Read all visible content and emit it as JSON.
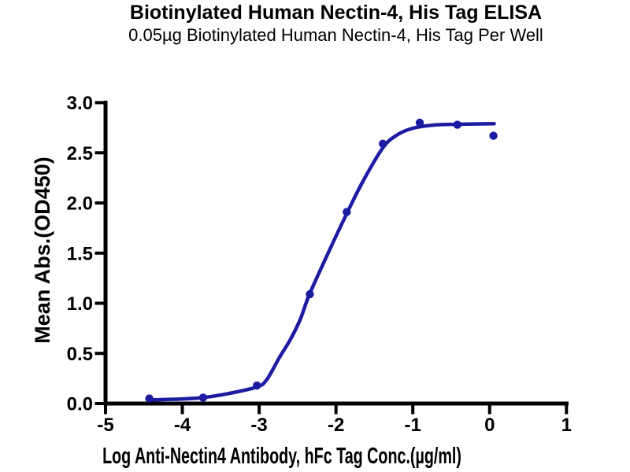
{
  "chart_data": {
    "type": "scatter",
    "title": "Biotinylated Human Nectin-4, His Tag ELISA",
    "subtitle": "0.05µg Biotinylated Human Nectin-4, His Tag Per Well",
    "xlabel": "Log Anti-Nectin4 Antibody, hFc Tag Conc.(µg/ml)",
    "ylabel": "Mean Abs.(OD450)",
    "xlim": [
      -5,
      1
    ],
    "ylim": [
      0.0,
      3.0
    ],
    "xtick_labels": [
      "-5",
      "-4",
      "-3",
      "-2",
      "-1",
      "0",
      "1"
    ],
    "ytick_labels": [
      "0.0",
      "0.5",
      "1.0",
      "1.5",
      "2.0",
      "2.5",
      "3.0"
    ],
    "grid": false,
    "legend_position": "none",
    "marker_color": "#1c1ca3",
    "line_color": "#1c1ca3",
    "axis_color": "#000000",
    "series": [
      {
        "x": [
          -4.43,
          -3.73,
          -3.03,
          -2.34,
          -1.86,
          -1.39,
          -0.91,
          -0.42,
          0.05
        ],
        "y": [
          0.05,
          0.06,
          0.18,
          1.09,
          1.91,
          2.59,
          2.8,
          2.78,
          2.67
        ]
      }
    ],
    "fit_curve": {
      "x": [
        -4.45,
        -4.02,
        -3.73,
        -3.4,
        -3.03,
        -2.9,
        -2.74,
        -2.6,
        -2.47,
        -2.35,
        -2.12,
        -1.9,
        -1.66,
        -1.39,
        -1.2,
        -1.0,
        -0.74,
        -0.44,
        0.06
      ],
      "y": [
        0.035,
        0.045,
        0.06,
        0.1,
        0.165,
        0.24,
        0.455,
        0.63,
        0.83,
        1.08,
        1.47,
        1.83,
        2.2,
        2.55,
        2.68,
        2.745,
        2.776,
        2.784,
        2.79
      ]
    }
  }
}
